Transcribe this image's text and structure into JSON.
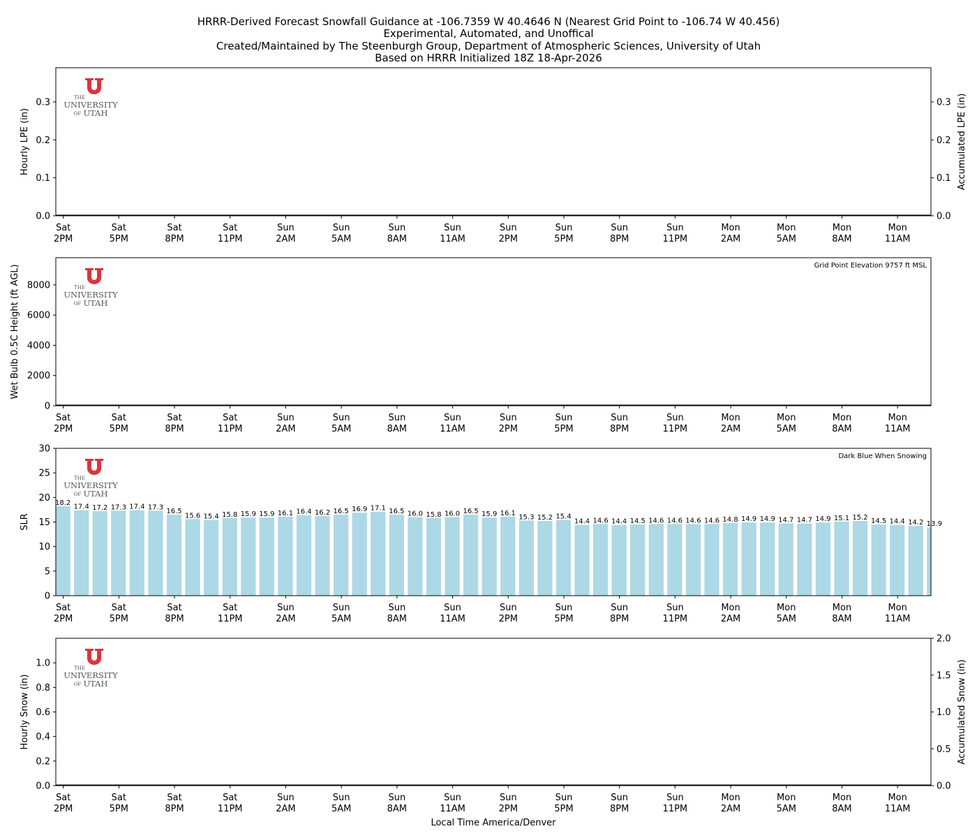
{
  "figure": {
    "title_lines": [
      "HRRR-Derived Forecast Snowfall Guidance at -106.7359 W 40.4646 N (Nearest Grid Point to -106.74 W 40.456)",
      "Experimental, Automated, and Unoffical",
      "Created/Maintained by The Steenburgh Group, Department of Atmospheric Sciences, University of Utah",
      "Based on HRRR Initialized 18Z 18-Apr-2026"
    ],
    "xlabel": "Local Time America/Denver",
    "logo": {
      "line1": "THE",
      "line2": "UNIVERSITY",
      "line3_small": "OF",
      "line3": "UTAH",
      "color": "#d9363e"
    }
  },
  "time_ticks": [
    [
      "Sat",
      "2PM"
    ],
    [
      "Sat",
      "5PM"
    ],
    [
      "Sat",
      "8PM"
    ],
    [
      "Sat",
      "11PM"
    ],
    [
      "Sun",
      "2AM"
    ],
    [
      "Sun",
      "5AM"
    ],
    [
      "Sun",
      "8AM"
    ],
    [
      "Sun",
      "11AM"
    ],
    [
      "Sun",
      "2PM"
    ],
    [
      "Sun",
      "5PM"
    ],
    [
      "Sun",
      "8PM"
    ],
    [
      "Sun",
      "11PM"
    ],
    [
      "Mon",
      "2AM"
    ],
    [
      "Mon",
      "5AM"
    ],
    [
      "Mon",
      "8AM"
    ],
    [
      "Mon",
      "11AM"
    ]
  ],
  "chart_data": [
    {
      "type": "bar",
      "panel": "lpe",
      "ylabel": "Hourly LPE (in)",
      "ylabel_right": "Accumulated LPE (in)",
      "ylim": [
        0,
        0.39
      ],
      "yticks": [
        "0.0",
        "0.1",
        "0.2",
        "0.3"
      ],
      "ylim_right": [
        0,
        0.39
      ],
      "yticks_right": [
        "0.0",
        "0.1",
        "0.2",
        "0.3"
      ],
      "values": []
    },
    {
      "type": "bar",
      "panel": "wetbulb",
      "ylabel": "Wet Bulb 0.5C Height (ft AGL)",
      "ylim": [
        0,
        9800
      ],
      "yticks": [
        "0",
        "2000",
        "4000",
        "6000",
        "8000"
      ],
      "annotation": "Grid Point Elevation 9757 ft MSL",
      "values": []
    },
    {
      "type": "bar",
      "panel": "slr",
      "ylabel": "SLR",
      "ylim": [
        0,
        30
      ],
      "yticks": [
        "0",
        "5",
        "10",
        "15",
        "20",
        "25",
        "30"
      ],
      "annotation": "Dark Blue When Snowing",
      "bar_color": "#add8e6",
      "values": [
        18.2,
        17.4,
        17.2,
        17.3,
        17.4,
        17.3,
        16.5,
        15.6,
        15.4,
        15.8,
        15.9,
        15.9,
        16.1,
        16.4,
        16.2,
        16.5,
        16.9,
        17.1,
        16.5,
        16.0,
        15.8,
        16.0,
        16.5,
        15.9,
        16.1,
        15.3,
        15.2,
        15.4,
        14.4,
        14.6,
        14.4,
        14.5,
        14.6,
        14.6,
        14.6,
        14.6,
        14.8,
        14.9,
        14.9,
        14.7,
        14.7,
        14.9,
        15.1,
        15.2,
        14.5,
        14.4,
        14.2,
        13.9
      ],
      "labels": [
        "18.2",
        "17.4",
        "17.2",
        "17.3",
        "17.4",
        "17.3",
        "16.5",
        "15.6",
        "15.4",
        "15.8",
        "15.9",
        "15.9",
        "16.1",
        "16.4",
        "16.2",
        "16.5",
        "16.9",
        "17.1",
        "16.5",
        "16.0",
        "15.8",
        "16.0",
        "16.5",
        "15.9",
        "16.1",
        "15.3",
        "15.2",
        "15.4",
        "14.4",
        "14.6",
        "14.4",
        "14.5",
        "14.6",
        "14.6",
        "14.6",
        "14.6",
        "14.8",
        "14.9",
        "14.9",
        "14.7",
        "14.7",
        "14.9",
        "15.1",
        "15.2",
        "14.5",
        "14.4",
        "14.2",
        "13.9"
      ]
    },
    {
      "type": "bar",
      "panel": "snow",
      "ylabel": "Hourly Snow (in)",
      "ylabel_right": "Accumulated Snow (in)",
      "ylim": [
        0,
        1.2
      ],
      "yticks": [
        "0.0",
        "0.2",
        "0.4",
        "0.6",
        "0.8",
        "1.0"
      ],
      "ylim_right": [
        0,
        2.0
      ],
      "yticks_right": [
        "0.0",
        "0.5",
        "1.0",
        "1.5",
        "2.0"
      ],
      "values": []
    }
  ]
}
